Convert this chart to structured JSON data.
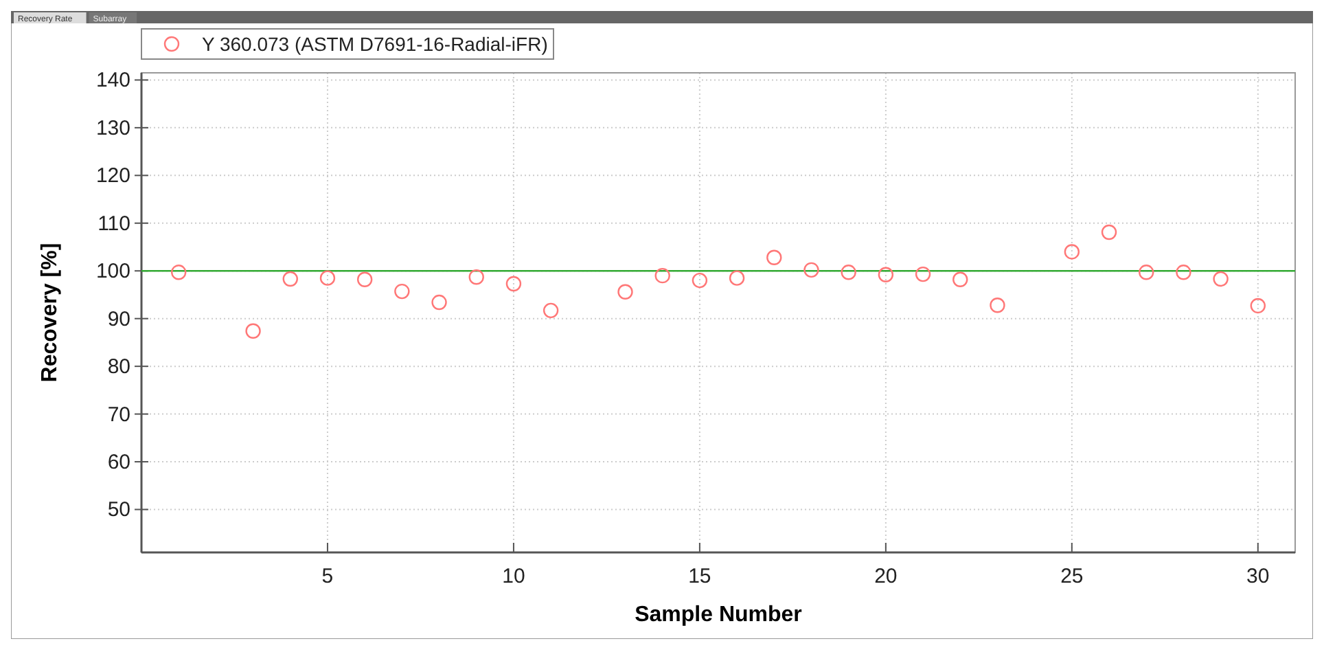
{
  "chart_data": {
    "type": "scatter",
    "xlabel": "Sample Number",
    "ylabel": "Recovery [%]",
    "annotations": [
      "Recovery Rate",
      "Subarray"
    ],
    "xlim": [
      0,
      31
    ],
    "xticks": [
      5,
      10,
      15,
      20,
      25,
      30
    ],
    "ylim": [
      41,
      141.5
    ],
    "yticks": [
      50,
      60,
      70,
      80,
      90,
      100,
      110,
      120,
      130,
      140
    ],
    "grid": true,
    "legend": "top left",
    "marker": "circle",
    "ref_lines": [
      {
        "axis": "y",
        "value": 100,
        "color": "#33aa33"
      }
    ],
    "series": [
      {
        "name": "Y 360.073 (ASTM D7691-16-Radial-iFR)",
        "color": "#ff7777",
        "x": [
          1,
          3,
          4,
          5,
          6,
          7,
          8,
          9,
          10,
          11,
          13,
          14,
          15,
          16,
          17,
          18,
          19,
          20,
          21,
          22,
          23,
          25,
          26,
          27,
          28,
          29,
          30
        ],
        "values": [
          99.7,
          87.4,
          98.3,
          98.5,
          98.2,
          95.7,
          93.4,
          98.7,
          97.3,
          91.7,
          95.6,
          99.0,
          98.0,
          98.5,
          102.8,
          100.2,
          99.7,
          99.2,
          99.3,
          98.2,
          92.8,
          104.0,
          108.1,
          99.7,
          99.7,
          98.3,
          92.7
        ]
      }
    ]
  }
}
